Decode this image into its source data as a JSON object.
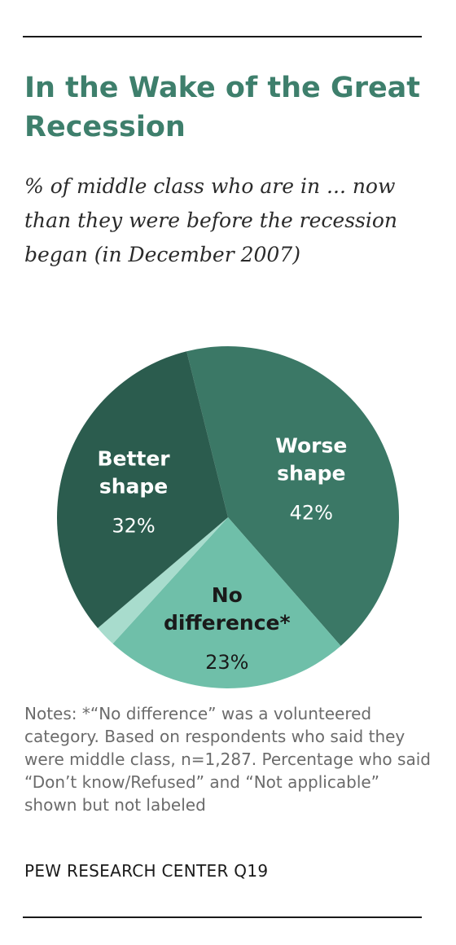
{
  "chart_data": {
    "type": "pie",
    "title": "In the Wake of the Great Recession",
    "subtitle": "% of middle class who are in ... now than they were before the recession began (in December 2007)",
    "slices": [
      {
        "label_lines": [
          "Worse",
          "shape"
        ],
        "value": 42,
        "value_label": "42%",
        "color": "#3b7866",
        "label_color": "#ffffff"
      },
      {
        "label_lines": [
          "No",
          "difference*"
        ],
        "value": 23,
        "value_label": "23%",
        "color": "#6fbfa9",
        "label_color": "#1a1a1a"
      },
      {
        "label_lines": [],
        "value": 2,
        "value_label": "",
        "color": "#a8dccd",
        "label_color": "#1a1a1a"
      },
      {
        "label_lines": [
          "Better",
          "shape"
        ],
        "value": 32,
        "value_label": "32%",
        "color": "#2b5c4e",
        "label_color": "#ffffff"
      }
    ]
  },
  "notes": "Notes: *“No difference” was a volunteered category. Based on respondents who said they were middle class, n=1,287. Percentage who said “Don’t know/Refused” and “Not applicable” shown but not labeled",
  "source": "PEW RESEARCH CENTER Q19"
}
